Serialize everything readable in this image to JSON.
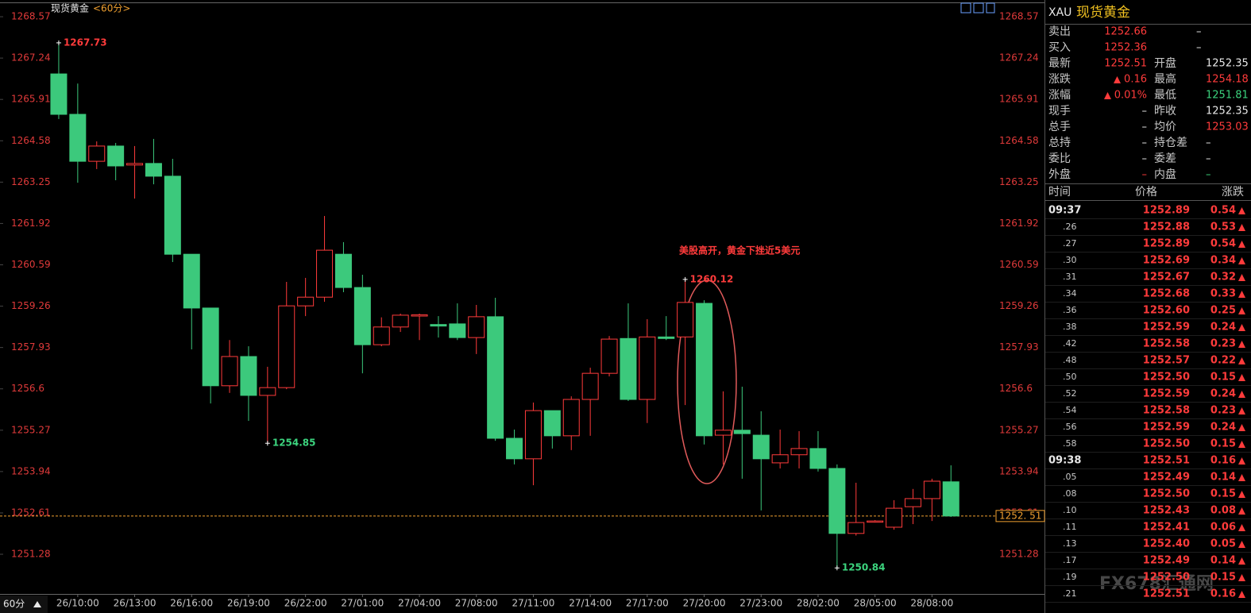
{
  "chart_data": {
    "type": "candlestick",
    "title": "现货黄金",
    "period": "<60分>",
    "period_switch": "60分",
    "categories": [
      null,
      "26/10:00",
      null,
      null,
      "26/13:00",
      null,
      null,
      "26/16:00",
      null,
      null,
      "26/19:00",
      null,
      null,
      "26/22:00",
      null,
      null,
      "27/01:00",
      null,
      null,
      "27/04:00",
      null,
      null,
      "27/08:00",
      null,
      null,
      "27/11:00",
      null,
      null,
      "27/14:00",
      null,
      null,
      "27/17:00",
      null,
      null,
      "27/20:00",
      null,
      null,
      "27/23:00",
      null,
      null,
      "28/02:00",
      null,
      null,
      "28/05:00",
      null,
      null,
      "28/08:00",
      null
    ],
    "open": [
      1266.73,
      1265.43,
      1263.92,
      1264.41,
      1263.8,
      1263.85,
      1263.44,
      1260.93,
      1259.2,
      1256.7,
      1257.64,
      1256.39,
      1256.64,
      1259.27,
      1259.55,
      1260.93,
      1259.86,
      1258.02,
      1258.59,
      1258.95,
      1258.67,
      1258.69,
      1258.25,
      1258.92,
      1255.01,
      1254.35,
      1255.9,
      1255.09,
      1256.26,
      1257.1,
      1258.22,
      1256.26,
      1258.27,
      1258.27,
      1259.35,
      1255.11,
      1255.27,
      1255.11,
      1254.22,
      1254.48,
      1254.68,
      1254.04,
      1251.95,
      1252.33,
      1252.15,
      1252.81,
      1253.07,
      1253.61
    ],
    "high": [
      1267.73,
      1266.42,
      1264.56,
      1264.51,
      1264.41,
      1264.64,
      1264.0,
      1260.93,
      1259.2,
      1258.17,
      1257.97,
      1257.31,
      1260.04,
      1260.17,
      1262.16,
      1261.32,
      1260.27,
      1258.9,
      1259.02,
      1259.02,
      1258.94,
      1259.35,
      1259.3,
      1259.53,
      1255.29,
      1256.16,
      1255.9,
      1256.36,
      1257.28,
      1258.3,
      1259.35,
      1258.84,
      1258.94,
      1260.12,
      1259.45,
      1256.52,
      1256.67,
      1255.88,
      1255.29,
      1255.24,
      1255.24,
      1254.17,
      1253.58,
      1252.38,
      1253.02,
      1253.38,
      1253.71,
      1254.14
    ],
    "low": [
      1265.28,
      1263.23,
      1263.67,
      1263.31,
      1262.72,
      1263.18,
      1260.68,
      1257.87,
      1256.13,
      1256.47,
      1255.57,
      1254.85,
      1256.59,
      1258.94,
      1259.4,
      1259.71,
      1257.1,
      1257.97,
      1258.43,
      1258.17,
      1258.25,
      1258.17,
      1257.72,
      1254.93,
      1254.17,
      1253.5,
      1254.68,
      1254.63,
      1255.09,
      1257.0,
      1256.21,
      1255.5,
      1258.17,
      1256.08,
      1254.81,
      1254.17,
      1253.71,
      1252.69,
      1254.04,
      1254.04,
      1253.94,
      1250.84,
      1251.88,
      1252.3,
      1252.07,
      1252.25,
      1252.35,
      1252.48
    ],
    "close": [
      1265.43,
      1263.92,
      1264.41,
      1263.77,
      1263.85,
      1263.44,
      1260.93,
      1259.2,
      1256.7,
      1257.64,
      1256.39,
      1256.64,
      1259.27,
      1259.55,
      1261.06,
      1259.86,
      1258.02,
      1258.59,
      1258.97,
      1258.98,
      1258.62,
      1258.25,
      1258.92,
      1255.01,
      1254.35,
      1255.9,
      1255.09,
      1256.26,
      1257.1,
      1258.2,
      1256.26,
      1258.27,
      1258.22,
      1259.38,
      1255.09,
      1255.27,
      1255.16,
      1254.35,
      1254.48,
      1254.68,
      1254.04,
      1251.95,
      1252.3,
      1252.35,
      1252.76,
      1253.07,
      1253.63,
      1252.51
    ],
    "up_color": "#ff3b3b",
    "down_color": "#3cc97c",
    "ylim": [
      1250.08,
      1268.98
    ],
    "yticks": [
      1251.28,
      1252.61,
      1253.94,
      1255.27,
      1256.6,
      1257.93,
      1259.26,
      1260.59,
      1261.92,
      1263.25,
      1264.58,
      1265.91,
      1267.24,
      1268.57
    ],
    "grid": false,
    "point_labels": [
      {
        "value": 1267.73,
        "at": "high",
        "color": "#ff3b3b"
      },
      {
        "value": 1254.85,
        "at": "low",
        "color": "#3cd47e"
      },
      {
        "value": 1260.12,
        "at": "high",
        "color": "#ff3b3b"
      },
      {
        "value": 1250.84,
        "at": "low",
        "color": "#3cd47e"
      }
    ],
    "last": {
      "value": 1252.51,
      "label": "1252. 51"
    },
    "last_color": "#f0a030",
    "annotation": "美股高开，黄金下挫近5美元"
  },
  "panel": {
    "code": "XAU",
    "name": "现货黄金",
    "quote_left": [
      [
        "卖出",
        "1252.66"
      ],
      [
        "买入",
        "1252.36"
      ],
      [
        "最新",
        "1252.51"
      ],
      [
        "涨跌",
        "0.16"
      ],
      [
        "涨幅",
        "0.01%"
      ],
      [
        "现手",
        "–"
      ],
      [
        "总手",
        "–"
      ],
      [
        "总持",
        "–"
      ],
      [
        "委比",
        "–"
      ],
      [
        "外盘",
        "–"
      ]
    ],
    "quote_right": [
      [
        "–"
      ],
      [
        "–"
      ],
      [
        "开盘",
        "1252.35"
      ],
      [
        "最高",
        "1254.18"
      ],
      [
        "最低",
        "1251.81"
      ],
      [
        "昨收",
        "1252.35"
      ],
      [
        "均价",
        "1253.03"
      ],
      [
        "持仓差",
        "–"
      ],
      [
        "委差",
        "–"
      ],
      [
        "内盘",
        "–"
      ]
    ],
    "ticks_header": [
      "时间",
      "价格",
      "涨跌"
    ],
    "ticks": [
      [
        "09:37",
        "1252.89",
        "0.54"
      ],
      [
        ".26",
        "1252.88",
        "0.53"
      ],
      [
        ".27",
        "1252.89",
        "0.54"
      ],
      [
        ".30",
        "1252.69",
        "0.34"
      ],
      [
        ".31",
        "1252.67",
        "0.32"
      ],
      [
        ".34",
        "1252.68",
        "0.33"
      ],
      [
        ".36",
        "1252.60",
        "0.25"
      ],
      [
        ".38",
        "1252.59",
        "0.24"
      ],
      [
        ".42",
        "1252.58",
        "0.23"
      ],
      [
        ".48",
        "1252.57",
        "0.22"
      ],
      [
        ".50",
        "1252.50",
        "0.15"
      ],
      [
        ".52",
        "1252.59",
        "0.24"
      ],
      [
        ".54",
        "1252.58",
        "0.23"
      ],
      [
        ".56",
        "1252.59",
        "0.24"
      ],
      [
        ".58",
        "1252.50",
        "0.15"
      ],
      [
        "09:38",
        "1252.51",
        "0.16"
      ],
      [
        ".05",
        "1252.49",
        "0.14"
      ],
      [
        ".08",
        "1252.50",
        "0.15"
      ],
      [
        ".10",
        "1252.43",
        "0.08"
      ],
      [
        ".11",
        "1252.41",
        "0.06"
      ],
      [
        ".13",
        "1252.40",
        "0.05"
      ],
      [
        ".17",
        "1252.49",
        "0.14"
      ],
      [
        ".19",
        "1252.50",
        "0.15"
      ],
      [
        ".21",
        "1252.51",
        "0.16"
      ]
    ],
    "watermark": "FX678汇通网"
  }
}
